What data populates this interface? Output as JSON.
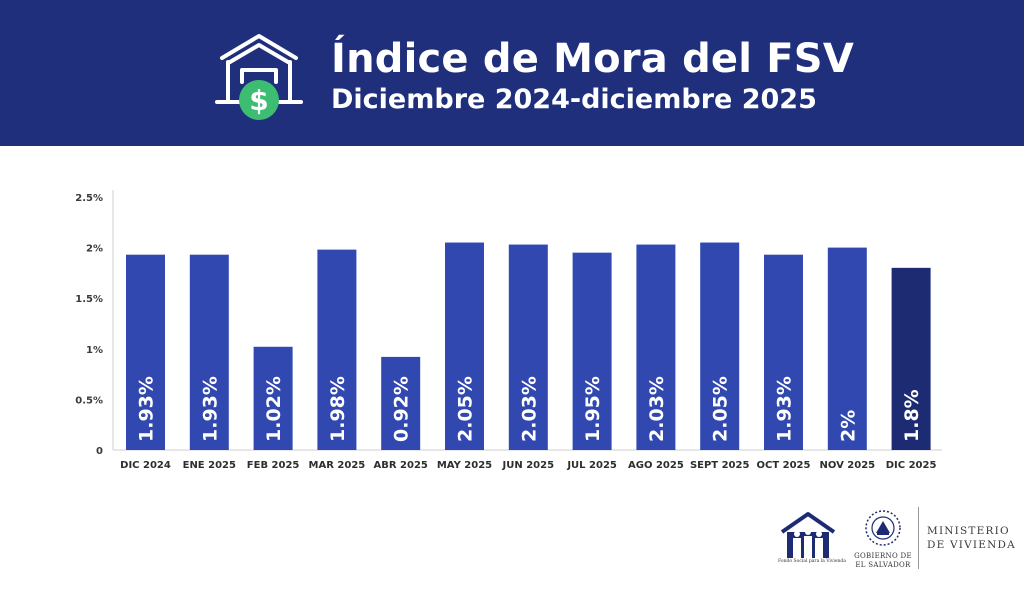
{
  "header": {
    "title": "Índice de Mora del FSV",
    "subtitle": "Diciembre 2024-diciembre 2025"
  },
  "icons": {
    "header_icon": "house-dollar-icon",
    "fsv_logo": "fsv-house-family-logo",
    "gob_logo": "el-salvador-coat-of-arms-seal"
  },
  "colors": {
    "header_bg": "#1f2f7c",
    "bar": "#3148b0",
    "bar_highlight": "#1d2b72",
    "dollar_badge": "#3dbd71"
  },
  "chart_data": {
    "type": "bar",
    "categories": [
      "DIC 2024",
      "ENE 2025",
      "FEB 2025",
      "MAR 2025",
      "ABR 2025",
      "MAY 2025",
      "JUN 2025",
      "JUL 2025",
      "AGO 2025",
      "SEPT 2025",
      "OCT 2025",
      "NOV 2025",
      "DIC 2025"
    ],
    "values": [
      1.93,
      1.93,
      1.02,
      1.98,
      0.92,
      2.05,
      2.03,
      1.95,
      2.03,
      2.05,
      1.93,
      2.0,
      1.8
    ],
    "data_labels": [
      "1.93%",
      "1.93%",
      "1.02%",
      "1.98%",
      "0.92%",
      "2.05%",
      "2.03%",
      "1.95%",
      "2.03%",
      "2.05%",
      "1.93%",
      "2%",
      "1.8%"
    ],
    "highlight_index": 12,
    "y_ticks": [
      0,
      0.5,
      1,
      1.5,
      2,
      2.5
    ],
    "y_tick_labels": [
      "0",
      "0.5%",
      "1%",
      "1.5%",
      "2%",
      "2.5%"
    ],
    "ylim": [
      0,
      2.6
    ],
    "grid": false,
    "legend": "none"
  },
  "footer": {
    "fsv_caption": "Fondo Social para la Vivienda",
    "gob_line1": "GOBIERNO DE",
    "gob_line2": "EL SALVADOR",
    "ministerio_line1": "MINISTERIO",
    "ministerio_line2": "DE VIVIENDA"
  }
}
